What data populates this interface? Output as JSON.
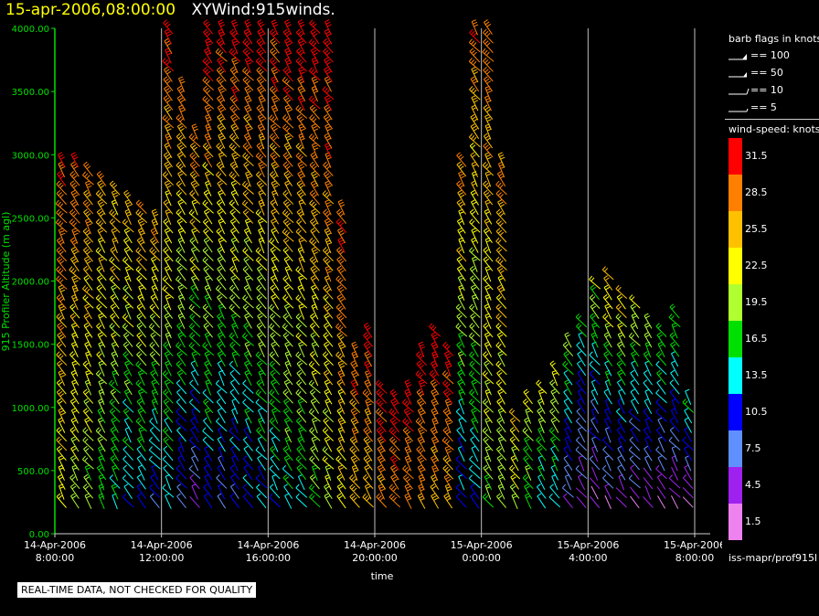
{
  "header": {
    "timestamp": "15-apr-2006,08:00:00",
    "name": "XYWind:915winds."
  },
  "legend": {
    "barb_title": "barb flags in knots",
    "barbs": [
      {
        "label": "== 100",
        "kind": "flag100"
      },
      {
        "label": "== 50",
        "kind": "flag50"
      },
      {
        "label": "== 10",
        "kind": "full"
      },
      {
        "label": "== 5",
        "kind": "half"
      }
    ],
    "speed_title": "wind-speed: knots",
    "scale": [
      {
        "label": "31.5",
        "color": "#ff0000"
      },
      {
        "label": "28.5",
        "color": "#ff8000"
      },
      {
        "label": "25.5",
        "color": "#ffc000"
      },
      {
        "label": "22.5",
        "color": "#ffff00"
      },
      {
        "label": "19.5",
        "color": "#b0ff30"
      },
      {
        "label": "16.5",
        "color": "#00e000"
      },
      {
        "label": "13.5",
        "color": "#00ffff"
      },
      {
        "label": "10.5",
        "color": "#0000ff"
      },
      {
        "label": "7.5",
        "color": "#6090ff"
      },
      {
        "label": "4.5",
        "color": "#a020f0"
      },
      {
        "label": "1.5",
        "color": "#ee82ee"
      }
    ],
    "source": "iss-mapr/prof915l"
  },
  "footer": {
    "quality_note": "REAL-TIME DATA, NOT CHECKED FOR QUALITY"
  },
  "chart_data": {
    "type": "scatter",
    "title": "XYWind:915winds.",
    "xlabel": "time",
    "ylabel": "915 Profiler Altitude (m agl)",
    "ylim": [
      0,
      4000
    ],
    "yticks": [
      "0.00",
      "500.00",
      "1000.00",
      "1500.00",
      "2000.00",
      "2500.00",
      "3000.00",
      "3500.00",
      "4000.00"
    ],
    "xticks": [
      {
        "date": "14-Apr-2006",
        "time": "8:00:00"
      },
      {
        "date": "14-Apr-2006",
        "time": "12:00:00"
      },
      {
        "date": "14-Apr-2006",
        "time": "16:00:00"
      },
      {
        "date": "14-Apr-2006",
        "time": "20:00:00"
      },
      {
        "date": "15-Apr-2006",
        "time": "0:00:00"
      },
      {
        "date": "15-Apr-2006",
        "time": "4:00:00"
      },
      {
        "date": "15-Apr-2006",
        "time": "8:00:00"
      }
    ],
    "grid": "vertical lines at time ticks",
    "marks": "wind barbs colored by wind speed (knots)",
    "profile_columns": [
      {
        "time": "08:15",
        "top_m": 3000,
        "speed_low": 22,
        "speed_high": 30
      },
      {
        "time": "08:45",
        "top_m": 2950,
        "speed_low": 20,
        "speed_high": 29
      },
      {
        "time": "09:15",
        "top_m": 2900,
        "speed_low": 18,
        "speed_high": 28
      },
      {
        "time": "09:45",
        "top_m": 2850,
        "speed_low": 16,
        "speed_high": 27
      },
      {
        "time": "10:15",
        "top_m": 2750,
        "speed_low": 14,
        "speed_high": 26
      },
      {
        "time": "10:45",
        "top_m": 2700,
        "speed_low": 12,
        "speed_high": 26
      },
      {
        "time": "11:15",
        "top_m": 2600,
        "speed_low": 11,
        "speed_high": 27
      },
      {
        "time": "11:45",
        "top_m": 2550,
        "speed_low": 10,
        "speed_high": 28
      },
      {
        "time": "12:15",
        "top_m": 4000,
        "speed_low": 12,
        "speed_high": 31
      },
      {
        "time": "12:45",
        "top_m": 3600,
        "speed_low": 8,
        "speed_high": 30
      },
      {
        "time": "13:15",
        "top_m": 3200,
        "speed_low": 6,
        "speed_high": 29
      },
      {
        "time": "13:45",
        "top_m": 4000,
        "speed_low": 10,
        "speed_high": 32
      },
      {
        "time": "14:15",
        "top_m": 4000,
        "speed_low": 8,
        "speed_high": 32
      },
      {
        "time": "14:45",
        "top_m": 4000,
        "speed_low": 9,
        "speed_high": 32
      },
      {
        "time": "15:15",
        "top_m": 4000,
        "speed_low": 10,
        "speed_high": 32
      },
      {
        "time": "15:45",
        "top_m": 4000,
        "speed_low": 12,
        "speed_high": 32
      },
      {
        "time": "16:15",
        "top_m": 4000,
        "speed_low": 12,
        "speed_high": 32
      },
      {
        "time": "16:45",
        "top_m": 4000,
        "speed_low": 14,
        "speed_high": 32
      },
      {
        "time": "17:15",
        "top_m": 4000,
        "speed_low": 15,
        "speed_high": 32
      },
      {
        "time": "17:45",
        "top_m": 4000,
        "speed_low": 17,
        "speed_high": 32
      },
      {
        "time": "18:15",
        "top_m": 4000,
        "speed_low": 20,
        "speed_high": 32
      },
      {
        "time": "18:45",
        "top_m": 2600,
        "speed_low": 22,
        "speed_high": 31
      },
      {
        "time": "19:15",
        "top_m": 1500,
        "speed_low": 24,
        "speed_high": 31
      },
      {
        "time": "19:45",
        "top_m": 1600,
        "speed_low": 25,
        "speed_high": 31
      },
      {
        "time": "20:15",
        "top_m": 1200,
        "speed_low": 27,
        "speed_high": 32
      },
      {
        "time": "20:45",
        "top_m": 1100,
        "speed_low": 28,
        "speed_high": 32
      },
      {
        "time": "21:15",
        "top_m": 1200,
        "speed_low": 28,
        "speed_high": 32
      },
      {
        "time": "21:45",
        "top_m": 1500,
        "speed_low": 28,
        "speed_high": 32
      },
      {
        "time": "22:15",
        "top_m": 1650,
        "speed_low": 26,
        "speed_high": 32
      },
      {
        "time": "22:45",
        "top_m": 1500,
        "speed_low": 26,
        "speed_high": 32
      },
      {
        "time": "23:15",
        "top_m": 3000,
        "speed_low": 10,
        "speed_high": 28
      },
      {
        "time": "23:45",
        "top_m": 4000,
        "speed_low": 12,
        "speed_high": 29
      },
      {
        "time": "00:15",
        "top_m": 4000,
        "speed_low": 18,
        "speed_high": 29
      },
      {
        "time": "00:45",
        "top_m": 3000,
        "speed_low": 18,
        "speed_high": 28
      },
      {
        "time": "01:15",
        "top_m": 950,
        "speed_low": 20,
        "speed_high": 24
      },
      {
        "time": "01:45",
        "top_m": 1100,
        "speed_low": 15,
        "speed_high": 22
      },
      {
        "time": "02:15",
        "top_m": 1150,
        "speed_low": 12,
        "speed_high": 22
      },
      {
        "time": "02:45",
        "top_m": 1300,
        "speed_low": 12,
        "speed_high": 22
      },
      {
        "time": "03:15",
        "top_m": 1550,
        "speed_low": 6,
        "speed_high": 18
      },
      {
        "time": "03:45",
        "top_m": 1700,
        "speed_low": 3,
        "speed_high": 16
      },
      {
        "time": "04:15",
        "top_m": 2000,
        "speed_low": 3,
        "speed_high": 20
      },
      {
        "time": "04:45",
        "top_m": 2050,
        "speed_low": 4,
        "speed_high": 24
      },
      {
        "time": "05:15",
        "top_m": 1900,
        "speed_low": 3,
        "speed_high": 25
      },
      {
        "time": "05:45",
        "top_m": 1850,
        "speed_low": 3,
        "speed_high": 22
      },
      {
        "time": "06:15",
        "top_m": 1700,
        "speed_low": 3,
        "speed_high": 20
      },
      {
        "time": "06:45",
        "top_m": 1600,
        "speed_low": 3,
        "speed_high": 18
      },
      {
        "time": "07:15",
        "top_m": 1800,
        "speed_low": 3,
        "speed_high": 18
      },
      {
        "time": "07:45",
        "top_m": 1100,
        "speed_low": 3,
        "speed_high": 16
      }
    ]
  }
}
